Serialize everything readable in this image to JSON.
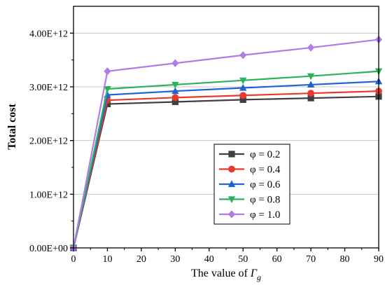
{
  "chart_data": {
    "type": "line",
    "xlabel_prefix": "The value of ",
    "xlabel_symbol": "Γ",
    "xlabel_subscript": "g",
    "ylabel": "Total cost",
    "xlim": [
      0,
      90
    ],
    "ylim": [
      0,
      4500000000000.0
    ],
    "x_ticks": [
      0,
      10,
      20,
      30,
      40,
      50,
      60,
      70,
      80,
      90
    ],
    "y_ticks": [
      0,
      1000000000000.0,
      2000000000000.0,
      3000000000000.0,
      4000000000000.0
    ],
    "y_tick_labels": [
      "0.00E+00",
      "1.00E+12",
      "2.00E+12",
      "3.00E+12",
      "4.00E+12"
    ],
    "x": [
      0,
      10,
      30,
      50,
      70,
      90
    ],
    "grid": "horizontal",
    "legend_position": "lower-right",
    "series": [
      {
        "name": "φ = 0.2",
        "color": "#404040",
        "marker": "square",
        "values": [
          0,
          2680000000000.0,
          2720000000000.0,
          2760000000000.0,
          2790000000000.0,
          2820000000000.0
        ]
      },
      {
        "name": "φ = 0.4",
        "color": "#e8392f",
        "marker": "circle",
        "values": [
          0,
          2750000000000.0,
          2800000000000.0,
          2840000000000.0,
          2880000000000.0,
          2920000000000.0
        ]
      },
      {
        "name": "φ = 0.6",
        "color": "#1f63d6",
        "marker": "triangle-up",
        "values": [
          0,
          2850000000000.0,
          2920000000000.0,
          2980000000000.0,
          3040000000000.0,
          3100000000000.0
        ]
      },
      {
        "name": "φ = 0.8",
        "color": "#2bb35a",
        "marker": "triangle-down",
        "values": [
          0,
          2960000000000.0,
          3040000000000.0,
          3120000000000.0,
          3200000000000.0,
          3290000000000.0
        ]
      },
      {
        "name": "φ = 1.0",
        "color": "#b07ce6",
        "marker": "diamond",
        "values": [
          0,
          3290000000000.0,
          3440000000000.0,
          3590000000000.0,
          3730000000000.0,
          3880000000000.0
        ]
      }
    ]
  }
}
